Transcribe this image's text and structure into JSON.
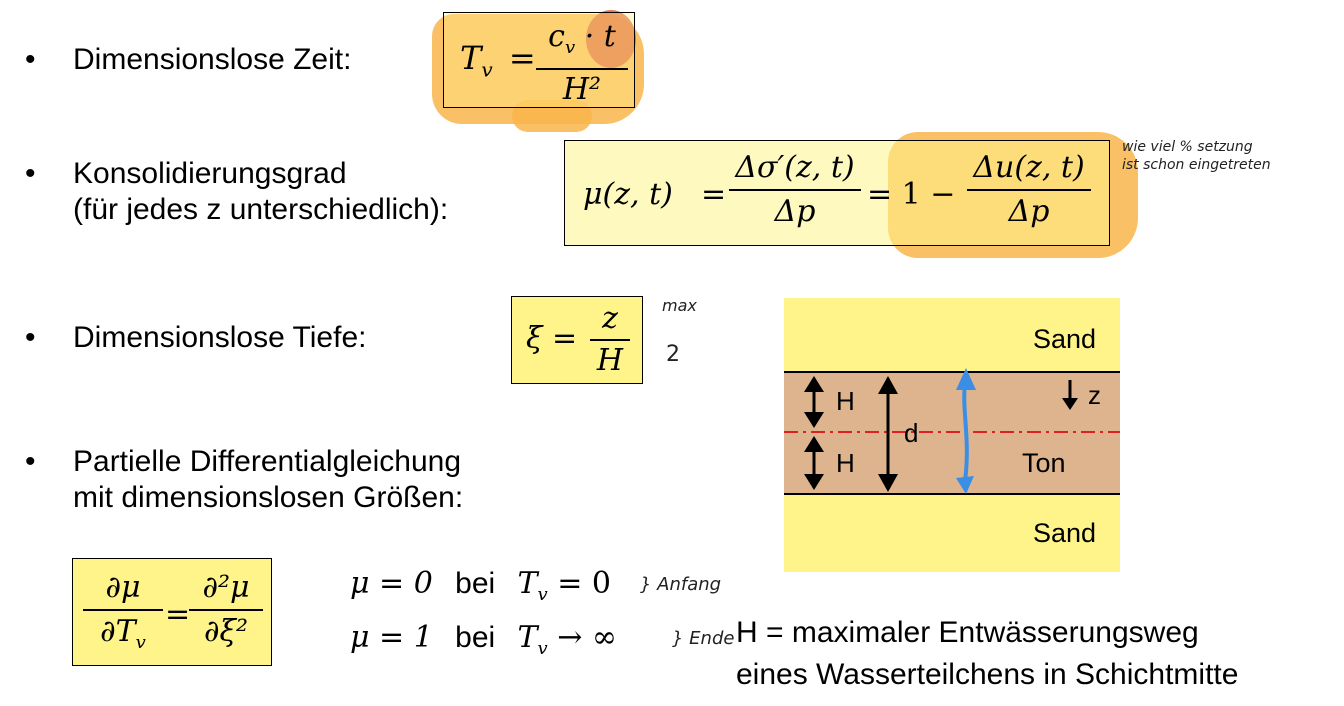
{
  "bullets": {
    "time_label": "Dimensionslose Zeit:",
    "consolidation_line1": "Konsolidierungsgrad",
    "consolidation_line2": "(für jedes z unterschiedlich):",
    "depth_label": "Dimensionslose Tiefe:",
    "pde_line1": "Partielle Differentialgleichung",
    "pde_line2": "mit dimensionslosen Größen:",
    "bullet_symbol": "•"
  },
  "formulas": {
    "tv_lhs": "T",
    "tv_sub": "v",
    "tv_eq": "=",
    "tv_num": "c",
    "tv_num_sub": "v",
    "tv_num_rest": " · t",
    "tv_den": "H²",
    "mu_lhs": "μ(z, t)",
    "mu_eq1": "=",
    "mu_frac1_num": "Δσ′(z, t)",
    "mu_frac1_den": "Δp",
    "mu_eq2": "= 1 −",
    "mu_frac2_num": "Δu(z, t)",
    "mu_frac2_den": "Δp",
    "xi_lhs": "ξ =",
    "xi_num": "z",
    "xi_den": "H",
    "pde_num1": "∂μ",
    "pde_den1": "∂T",
    "pde_den1_sub": "v",
    "pde_eq": "=",
    "pde_num2": "∂²μ",
    "pde_den2": "∂ξ²"
  },
  "conditions": {
    "c1_lhs": "μ = 0",
    "c1_bei": "bei",
    "c1_rhs_var": "T",
    "c1_rhs_sub": "v",
    "c1_rhs_rest": " = 0",
    "c2_lhs": "μ = 1",
    "c2_bei": "bei",
    "c2_rhs_var": "T",
    "c2_rhs_sub": "v",
    "c2_rhs_rest": " → ∞"
  },
  "diagram": {
    "sand_top": "Sand",
    "sand_bottom": "Sand",
    "ton": "Ton",
    "h_upper": "H",
    "h_lower": "H",
    "d_label": "d",
    "z_label": "z",
    "colors": {
      "sand": "#fef48a",
      "clay": "#deb48e",
      "axis": "#e02020",
      "water_arrow": "#3a8ee6"
    }
  },
  "caption": {
    "line1": "H = maximaler Entwässerungsweg",
    "line2": "eines Wasserteilchens in Schichtmitte"
  },
  "handwriting": {
    "note_line1": "wie viel % setzung",
    "note_line2": "ist schon eingetreten",
    "depth_note1": "max",
    "depth_note2": "2",
    "start_note": "} Anfang",
    "end_note": "} Ende"
  }
}
